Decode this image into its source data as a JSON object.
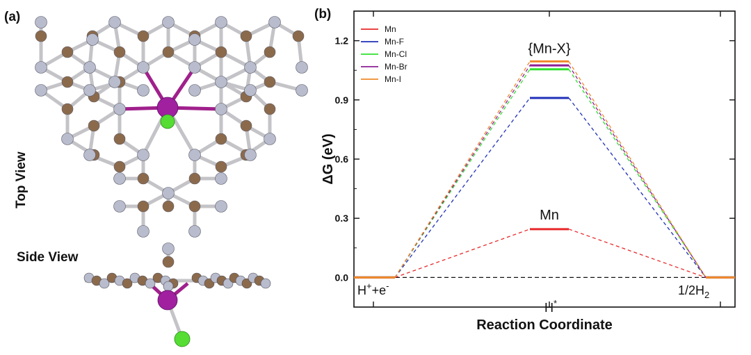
{
  "panels": {
    "a_label": "(a)",
    "b_label": "(b)"
  },
  "structure": {
    "top_view_label": "Top View",
    "side_view_label": "Side View",
    "colors": {
      "carbon": "#8b6a4c",
      "nitrogen": "#b8bccd",
      "manganese": "#a020a0",
      "halogen": "#55dd33",
      "bond_mn": "#a0208c"
    }
  },
  "chart_data": {
    "type": "line",
    "xlabel": "Reaction Coordinate",
    "ylabel": "ΔG (eV)",
    "categories": [
      {
        "base": "H",
        "sup": "+",
        "mid": "+e",
        "sup2": "-"
      },
      {
        "base": "H",
        "sup": "*"
      },
      {
        "base": "1/2H",
        "sub": "2"
      }
    ],
    "ylim": [
      -0.15,
      1.35
    ],
    "yticks": [
      "0.0",
      "0.3",
      "0.6",
      "0.9",
      "1.2"
    ],
    "ytick_values": [
      0,
      0.3,
      0.6,
      0.9,
      1.2
    ],
    "series": [
      {
        "name": "Mn",
        "color": "#e8282a",
        "values": [
          0,
          0.245,
          0
        ]
      },
      {
        "name": "Mn-F",
        "color": "#1f2fb8",
        "values": [
          0,
          0.91,
          0
        ]
      },
      {
        "name": "Mn-Cl",
        "color": "#2ee02e",
        "values": [
          0,
          1.055,
          0
        ]
      },
      {
        "name": "Mn-Br",
        "color": "#8c1f94",
        "values": [
          0,
          1.075,
          0
        ]
      },
      {
        "name": "Mn-I",
        "color": "#f0892a",
        "values": [
          0,
          1.095,
          0
        ]
      }
    ],
    "annotations": [
      {
        "text": "{Mn-X}"
      },
      {
        "text": "Mn"
      }
    ],
    "legend": "top-left",
    "grid": false
  }
}
